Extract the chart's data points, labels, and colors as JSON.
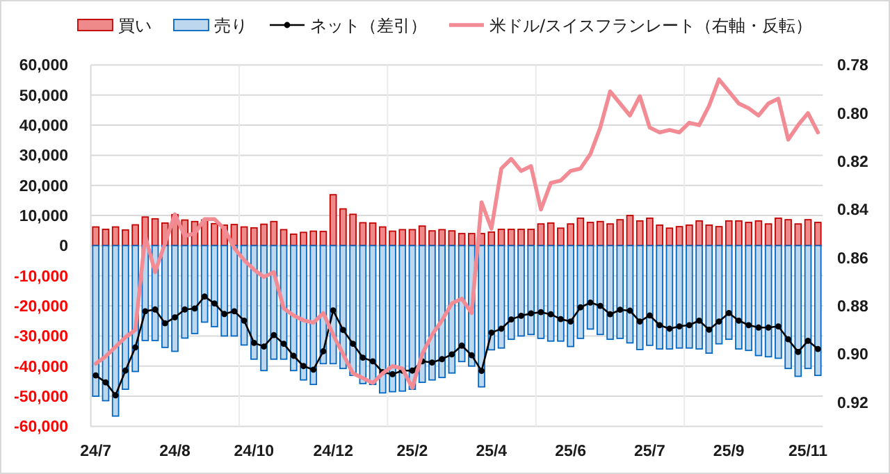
{
  "chart_data": {
    "type": "bar",
    "stacked": true,
    "legend": "top",
    "grid": true,
    "categories": [
      "24/7",
      null,
      null,
      null,
      null,
      null,
      null,
      null,
      "24/8",
      null,
      null,
      null,
      null,
      null,
      null,
      null,
      "24/10",
      null,
      null,
      null,
      null,
      null,
      null,
      null,
      "24/12",
      null,
      null,
      null,
      null,
      null,
      null,
      null,
      "25/2",
      null,
      null,
      null,
      null,
      null,
      null,
      null,
      "25/4",
      null,
      null,
      null,
      null,
      null,
      null,
      null,
      "25/6",
      null,
      null,
      null,
      null,
      null,
      null,
      null,
      "25/7",
      null,
      null,
      null,
      null,
      null,
      null,
      null,
      "25/9",
      null,
      null,
      null,
      null,
      null,
      null,
      null,
      "25/11",
      null
    ],
    "ylim": [
      -60000,
      60000
    ],
    "yticks": [
      {
        "value": 60000,
        "label": "60,000"
      },
      {
        "value": 50000,
        "label": "50,000"
      },
      {
        "value": 40000,
        "label": "40,000"
      },
      {
        "value": 30000,
        "label": "30,000"
      },
      {
        "value": 20000,
        "label": "20,000"
      },
      {
        "value": 10000,
        "label": "10,000"
      },
      0,
      {
        "value": -10000,
        "label": "-10,000"
      },
      {
        "value": -20000,
        "label": "-20,000"
      },
      {
        "value": -30000,
        "label": "-30,000"
      },
      {
        "value": -40000,
        "label": "-40,000"
      },
      {
        "value": -50000,
        "label": "-50,000"
      },
      {
        "value": -60000,
        "label": "-60,000"
      }
    ],
    "y2lim": [
      0.93,
      0.78
    ],
    "y2ticks": [
      0.78,
      {
        "value": 0.8,
        "label": "0.80"
      },
      0.82,
      0.84,
      0.86,
      0.88,
      {
        "value": 0.9,
        "label": "0.90"
      },
      0.92
    ],
    "series": [
      {
        "name": "買い",
        "color": "#ef8a8a",
        "values": [
          6200,
          5400,
          6200,
          5200,
          6900,
          9500,
          8900,
          7500,
          10300,
          8500,
          8000,
          8500,
          7300,
          6800,
          7000,
          6200,
          5900,
          7100,
          8000,
          5300,
          3800,
          4400,
          4800,
          4700,
          16900,
          12200,
          10400,
          7600,
          7500,
          6200,
          4800,
          5300,
          5300,
          6500,
          4900,
          5300,
          4900,
          4000,
          4000,
          4000,
          4500,
          5400,
          5400,
          5400,
          5400,
          7200,
          7500,
          5800,
          7200,
          9100,
          7700,
          8000,
          7200,
          8600,
          10000,
          8200,
          9100,
          6800,
          5800,
          6300,
          6800,
          8200,
          6800,
          6300,
          8200,
          8200,
          7700,
          8200,
          7200,
          9100,
          8600,
          7200,
          8600,
          7700
        ]
      },
      {
        "name": "売り",
        "color": "#bdd7ee",
        "values": [
          -50000,
          -51500,
          -56600,
          -47700,
          -41800,
          -31500,
          -31500,
          -33800,
          -35100,
          -30700,
          -29200,
          -25400,
          -26900,
          -30000,
          -30000,
          -33000,
          -37700,
          -41500,
          -37700,
          -37700,
          -41500,
          -44600,
          -46100,
          -39200,
          -39200,
          -40800,
          -43100,
          -45800,
          -46100,
          -48900,
          -48500,
          -48300,
          -47700,
          -45400,
          -44600,
          -43800,
          -42300,
          -38500,
          -40000,
          -46900,
          -34600,
          -34000,
          -31100,
          -30000,
          -29500,
          -30800,
          -31700,
          -31700,
          -33500,
          -30800,
          -27700,
          -29500,
          -31100,
          -30800,
          -32300,
          -34500,
          -33100,
          -34300,
          -34300,
          -34000,
          -34000,
          -34300,
          -35700,
          -32600,
          -31100,
          -34300,
          -34800,
          -36500,
          -36900,
          -37400,
          -40800,
          -43400,
          -40800,
          -43100
        ]
      },
      {
        "name": "ネット（差引）",
        "type": "line",
        "color": "#000000",
        "marker": "circle",
        "values": [
          -43100,
          -45400,
          -49700,
          -41500,
          -33800,
          -21800,
          -21200,
          -25800,
          -23800,
          -21200,
          -20900,
          -16900,
          -19200,
          -22700,
          -21800,
          -24900,
          -32300,
          -33500,
          -29700,
          -32600,
          -36600,
          -40000,
          -41200,
          -35100,
          -21500,
          -28000,
          -32600,
          -37200,
          -38400,
          -42000,
          -42700,
          -41500,
          -41500,
          -38400,
          -38800,
          -37700,
          -36100,
          -33200,
          -36400,
          -41600,
          -28900,
          -27600,
          -24500,
          -23300,
          -22500,
          -22100,
          -22800,
          -24400,
          -25200,
          -20500,
          -18900,
          -20000,
          -22800,
          -21300,
          -21600,
          -25200,
          -23200,
          -26400,
          -27600,
          -26800,
          -26400,
          -24900,
          -27900,
          -25200,
          -22400,
          -24900,
          -26400,
          -27200,
          -27200,
          -26800,
          -31100,
          -35300,
          -31600,
          -34300
        ]
      },
      {
        "name": "米ドル/スイスフランレート（右軸・反転）",
        "type": "line",
        "color": "#f28b93",
        "axis": "y2",
        "values": [
          0.904,
          0.901,
          0.897,
          0.893,
          0.89,
          0.851,
          0.866,
          0.854,
          0.842,
          0.851,
          0.85,
          0.844,
          0.844,
          0.848,
          0.856,
          0.861,
          0.865,
          0.868,
          0.866,
          0.881,
          0.884,
          0.886,
          0.887,
          0.883,
          0.892,
          0.9,
          0.908,
          0.91,
          0.912,
          0.908,
          0.905,
          0.906,
          0.914,
          0.9,
          0.892,
          0.886,
          0.879,
          0.877,
          0.883,
          0.837,
          0.848,
          0.823,
          0.819,
          0.824,
          0.822,
          0.84,
          0.829,
          0.828,
          0.824,
          0.823,
          0.817,
          0.806,
          0.791,
          0.796,
          0.801,
          0.793,
          0.806,
          0.808,
          0.807,
          0.808,
          0.804,
          0.805,
          0.797,
          0.786,
          0.791,
          0.796,
          0.798,
          0.801,
          0.796,
          0.794,
          0.811,
          0.805,
          0.8,
          0.808
        ]
      }
    ]
  }
}
